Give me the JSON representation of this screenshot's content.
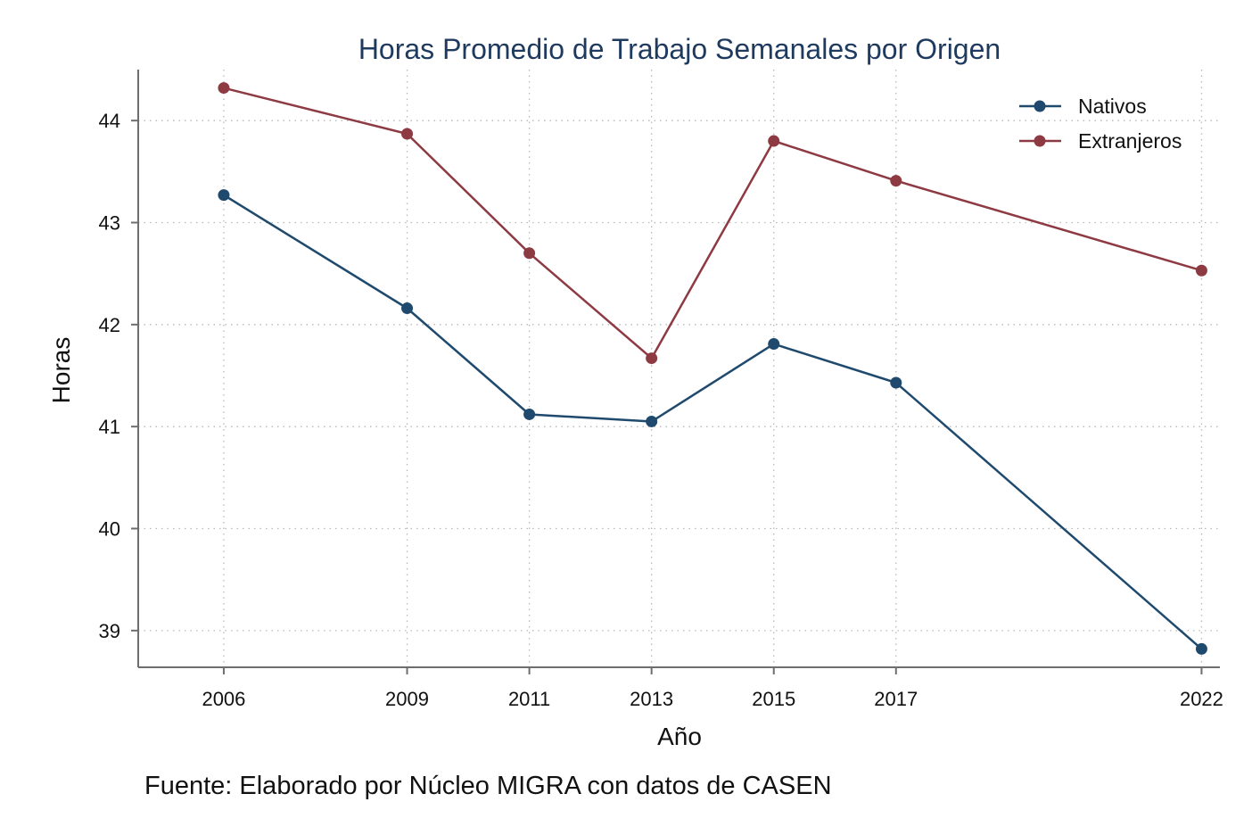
{
  "chart_data": {
    "type": "line",
    "title": "Horas Promedio de Trabajo Semanales por Origen",
    "xlabel": "Año",
    "ylabel": "Horas",
    "x": [
      2006,
      2009,
      2011,
      2013,
      2015,
      2017,
      2022
    ],
    "xticks": [
      "2006",
      "2009",
      "2011",
      "2013",
      "2015",
      "2017",
      "2022"
    ],
    "yticks": [
      "39",
      "40",
      "41",
      "42",
      "43",
      "44"
    ],
    "xlim": [
      2004.6,
      2022.3
    ],
    "ylim": [
      38.64,
      44.5
    ],
    "grid": true,
    "legend_position": "top-right",
    "series": [
      {
        "name": "Nativos",
        "color": "#1f4a6e",
        "values": [
          43.27,
          42.16,
          41.12,
          41.05,
          41.81,
          41.43,
          38.82
        ]
      },
      {
        "name": "Extranjeros",
        "color": "#8e3a42",
        "values": [
          44.32,
          43.87,
          42.7,
          41.67,
          43.8,
          43.41,
          42.53
        ]
      }
    ],
    "source": "Fuente: Elaborado por Núcleo MIGRA con datos de CASEN"
  }
}
